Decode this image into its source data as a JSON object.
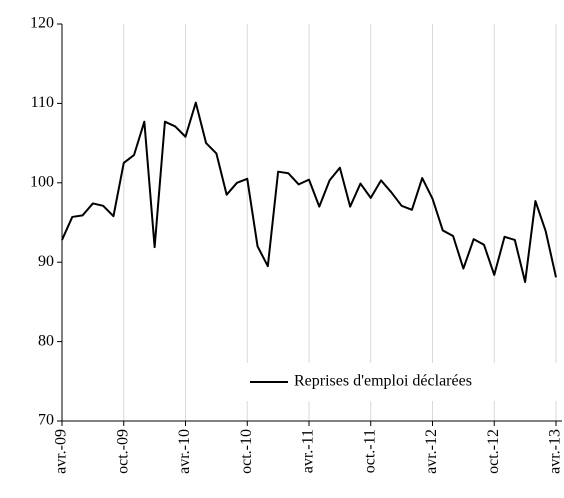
{
  "chart_data": {
    "type": "line",
    "categories": [
      "avr.-09",
      null,
      null,
      null,
      null,
      null,
      "oct.-09",
      null,
      null,
      null,
      null,
      null,
      "avr.-10",
      null,
      null,
      null,
      null,
      null,
      "oct.-10",
      null,
      null,
      null,
      null,
      null,
      "avr.-11",
      null,
      null,
      null,
      null,
      null,
      "oct.-11",
      null,
      null,
      null,
      null,
      null,
      "avr.-12",
      null,
      null,
      null,
      null,
      null,
      "oct.-12",
      null,
      null,
      null,
      null,
      null,
      "avr.-13"
    ],
    "series": [
      {
        "name": "Reprises d'emploi déclarées",
        "color": "#000000",
        "values": [
          92.8,
          95.7,
          95.9,
          97.4,
          97.1,
          95.8,
          102.5,
          103.5,
          107.7,
          91.9,
          107.7,
          107.1,
          105.8,
          110.1,
          105.0,
          103.7,
          98.5,
          100.0,
          100.5,
          92.0,
          89.5,
          101.4,
          101.2,
          99.8,
          100.4,
          97.0,
          100.3,
          101.9,
          97.0,
          99.9,
          98.1,
          100.3,
          98.8,
          97.1,
          96.6,
          100.6,
          98.0,
          94.0,
          93.3,
          89.2,
          92.9,
          92.2,
          88.4,
          93.2,
          92.8,
          87.5,
          97.7,
          93.9,
          88.1
        ]
      }
    ],
    "ylim": [
      70,
      120
    ],
    "yticks": [
      70,
      80,
      90,
      100,
      110,
      120
    ],
    "grid": true,
    "legend": "lower right"
  }
}
